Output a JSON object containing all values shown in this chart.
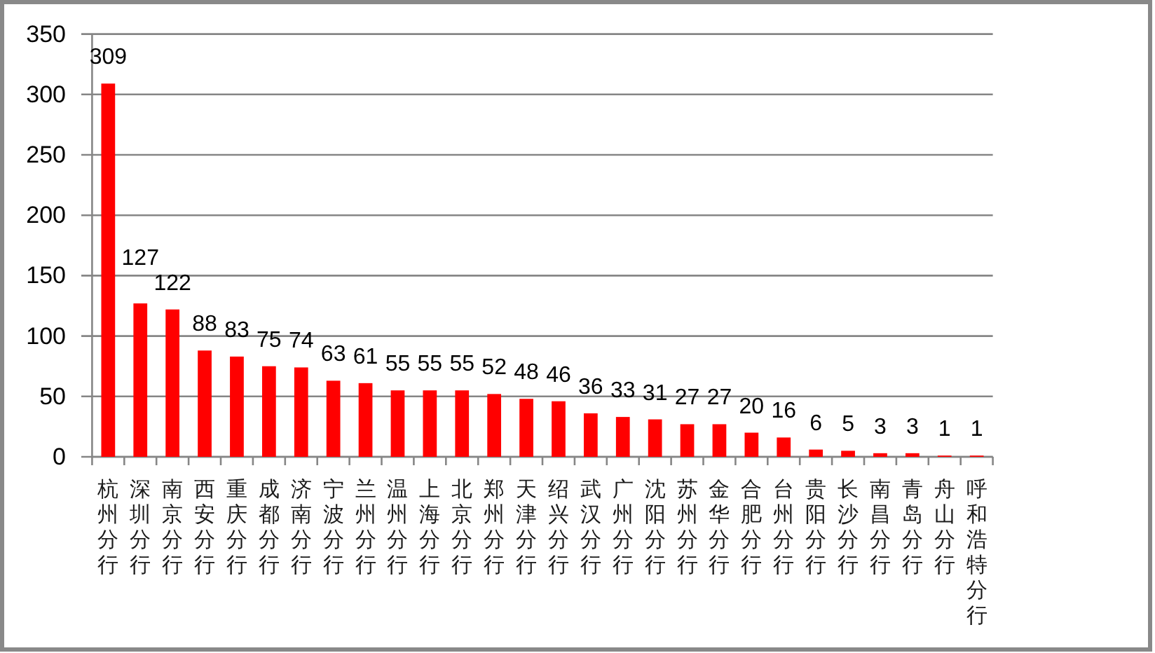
{
  "chart_data": {
    "type": "bar",
    "categories": [
      "杭州分行",
      "深圳分行",
      "南京分行",
      "西安分行",
      "重庆分行",
      "成都分行",
      "济南分行",
      "宁波分行",
      "兰州分行",
      "温州分行",
      "上海分行",
      "北京分行",
      "郑州分行",
      "天津分行",
      "绍兴分行",
      "武汉分行",
      "广州分行",
      "沈阳分行",
      "苏州分行",
      "金华分行",
      "合肥分行",
      "台州分行",
      "贵阳分行",
      "长沙分行",
      "南昌分行",
      "青岛分行",
      "舟山分行",
      "呼和浩特分行"
    ],
    "values": [
      309,
      127,
      122,
      88,
      83,
      75,
      74,
      63,
      61,
      55,
      55,
      55,
      52,
      48,
      46,
      36,
      33,
      31,
      27,
      27,
      20,
      16,
      6,
      5,
      3,
      3,
      1,
      1
    ],
    "color": "#ff0000",
    "ylim": [
      0,
      350
    ],
    "yticks": [
      0,
      50,
      100,
      150,
      200,
      250,
      300,
      350
    ],
    "grid": "y",
    "data_labels": true
  }
}
